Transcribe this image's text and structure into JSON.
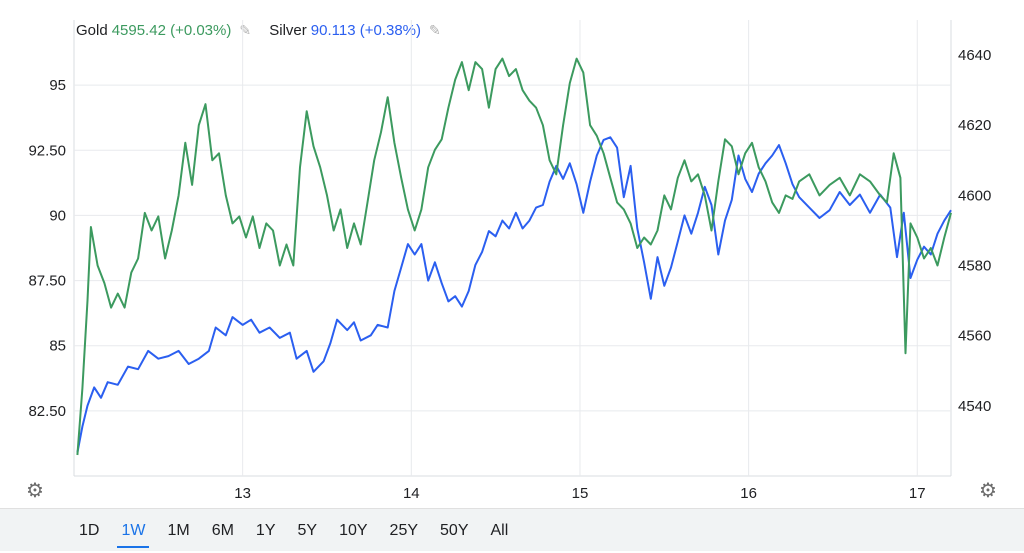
{
  "legend": {
    "gold": {
      "name": "Gold",
      "value": "4595.42 (+0.03%)",
      "color": "#3c9a5f",
      "icon": "pencil-icon"
    },
    "silver": {
      "name": "Silver",
      "value": "90.113 (+0.38%)",
      "color": "#2b5ff0",
      "icon": "pencil-icon"
    }
  },
  "icons": {
    "settings_left": "gear-icon",
    "settings_right": "gear-icon"
  },
  "range_tabs": [
    {
      "label": "1D",
      "active": false
    },
    {
      "label": "1W",
      "active": true
    },
    {
      "label": "1M",
      "active": false
    },
    {
      "label": "6M",
      "active": false
    },
    {
      "label": "1Y",
      "active": false
    },
    {
      "label": "5Y",
      "active": false
    },
    {
      "label": "10Y",
      "active": false
    },
    {
      "label": "25Y",
      "active": false
    },
    {
      "label": "50Y",
      "active": false
    },
    {
      "label": "All",
      "active": false
    }
  ],
  "chart_data": {
    "type": "line",
    "x_ticks": [
      "13",
      "14",
      "15",
      "16",
      "17"
    ],
    "x_tick_values": [
      13,
      14,
      15,
      16,
      17
    ],
    "xlim": [
      12.0,
      17.2
    ],
    "left_axis": {
      "ticks": [
        "95",
        "92.50",
        "90",
        "87.50",
        "85",
        "82.50"
      ],
      "tick_values": [
        95,
        92.5,
        90,
        87.5,
        85,
        82.5
      ],
      "ylim": [
        80,
        97.5
      ]
    },
    "right_axis": {
      "ticks": [
        "4640",
        "4620",
        "4600",
        "4580",
        "4560",
        "4540"
      ],
      "tick_values": [
        4640,
        4620,
        4600,
        4580,
        4560,
        4540
      ],
      "ylim": [
        4520,
        4650
      ]
    },
    "grid": true,
    "series": [
      {
        "name": "Silver",
        "axis": "left",
        "color": "#2b5ff0",
        "points": [
          [
            12.02,
            80.9
          ],
          [
            12.05,
            81.9
          ],
          [
            12.08,
            82.7
          ],
          [
            12.12,
            83.4
          ],
          [
            12.16,
            83.0
          ],
          [
            12.2,
            83.6
          ],
          [
            12.26,
            83.5
          ],
          [
            12.32,
            84.2
          ],
          [
            12.38,
            84.1
          ],
          [
            12.44,
            84.8
          ],
          [
            12.5,
            84.5
          ],
          [
            12.56,
            84.6
          ],
          [
            12.62,
            84.8
          ],
          [
            12.68,
            84.3
          ],
          [
            12.74,
            84.5
          ],
          [
            12.8,
            84.8
          ],
          [
            12.84,
            85.7
          ],
          [
            12.9,
            85.4
          ],
          [
            12.94,
            86.1
          ],
          [
            13.0,
            85.8
          ],
          [
            13.05,
            86.0
          ],
          [
            13.1,
            85.5
          ],
          [
            13.16,
            85.7
          ],
          [
            13.22,
            85.3
          ],
          [
            13.28,
            85.5
          ],
          [
            13.32,
            84.5
          ],
          [
            13.38,
            84.8
          ],
          [
            13.42,
            84.0
          ],
          [
            13.48,
            84.4
          ],
          [
            13.52,
            85.1
          ],
          [
            13.56,
            86.0
          ],
          [
            13.62,
            85.6
          ],
          [
            13.66,
            85.9
          ],
          [
            13.7,
            85.2
          ],
          [
            13.76,
            85.4
          ],
          [
            13.8,
            85.8
          ],
          [
            13.86,
            85.7
          ],
          [
            13.9,
            87.1
          ],
          [
            13.94,
            88.0
          ],
          [
            13.98,
            88.9
          ],
          [
            14.02,
            88.5
          ],
          [
            14.06,
            88.9
          ],
          [
            14.1,
            87.5
          ],
          [
            14.14,
            88.2
          ],
          [
            14.18,
            87.4
          ],
          [
            14.22,
            86.7
          ],
          [
            14.26,
            86.9
          ],
          [
            14.3,
            86.5
          ],
          [
            14.34,
            87.1
          ],
          [
            14.38,
            88.1
          ],
          [
            14.42,
            88.6
          ],
          [
            14.46,
            89.4
          ],
          [
            14.5,
            89.2
          ],
          [
            14.54,
            89.8
          ],
          [
            14.58,
            89.5
          ],
          [
            14.62,
            90.1
          ],
          [
            14.66,
            89.5
          ],
          [
            14.7,
            89.8
          ],
          [
            14.74,
            90.3
          ],
          [
            14.78,
            90.4
          ],
          [
            14.82,
            91.3
          ],
          [
            14.86,
            91.9
          ],
          [
            14.9,
            91.4
          ],
          [
            14.94,
            92.0
          ],
          [
            14.98,
            91.2
          ],
          [
            15.02,
            90.1
          ],
          [
            15.06,
            91.3
          ],
          [
            15.1,
            92.3
          ],
          [
            15.14,
            92.9
          ],
          [
            15.18,
            93.0
          ],
          [
            15.22,
            92.6
          ],
          [
            15.26,
            90.7
          ],
          [
            15.3,
            91.9
          ],
          [
            15.34,
            89.5
          ],
          [
            15.38,
            88.2
          ],
          [
            15.42,
            86.8
          ],
          [
            15.46,
            88.4
          ],
          [
            15.5,
            87.3
          ],
          [
            15.54,
            88.0
          ],
          [
            15.58,
            89.0
          ],
          [
            15.62,
            90.0
          ],
          [
            15.66,
            89.3
          ],
          [
            15.7,
            90.1
          ],
          [
            15.74,
            91.1
          ],
          [
            15.78,
            90.4
          ],
          [
            15.82,
            88.5
          ],
          [
            15.86,
            89.8
          ],
          [
            15.9,
            90.6
          ],
          [
            15.94,
            92.3
          ],
          [
            15.98,
            91.4
          ],
          [
            16.02,
            90.9
          ],
          [
            16.06,
            91.6
          ],
          [
            16.1,
            92.0
          ],
          [
            16.14,
            92.3
          ],
          [
            16.18,
            92.7
          ],
          [
            16.22,
            92.0
          ],
          [
            16.26,
            91.2
          ],
          [
            16.3,
            90.7
          ],
          [
            16.36,
            90.3
          ],
          [
            16.42,
            89.9
          ],
          [
            16.48,
            90.2
          ],
          [
            16.54,
            90.9
          ],
          [
            16.6,
            90.4
          ],
          [
            16.66,
            90.8
          ],
          [
            16.72,
            90.1
          ],
          [
            16.78,
            90.8
          ],
          [
            16.84,
            90.3
          ],
          [
            16.88,
            88.4
          ],
          [
            16.92,
            90.1
          ],
          [
            16.96,
            87.6
          ],
          [
            17.0,
            88.3
          ],
          [
            17.04,
            88.8
          ],
          [
            17.08,
            88.5
          ],
          [
            17.12,
            89.3
          ],
          [
            17.16,
            89.8
          ],
          [
            17.2,
            90.2
          ]
        ]
      },
      {
        "name": "Gold",
        "axis": "right",
        "color": "#3c9a5f",
        "points": [
          [
            12.02,
            4526
          ],
          [
            12.05,
            4545
          ],
          [
            12.08,
            4570
          ],
          [
            12.1,
            4591
          ],
          [
            12.14,
            4580
          ],
          [
            12.18,
            4575
          ],
          [
            12.22,
            4568
          ],
          [
            12.26,
            4572
          ],
          [
            12.3,
            4568
          ],
          [
            12.34,
            4578
          ],
          [
            12.38,
            4582
          ],
          [
            12.42,
            4595
          ],
          [
            12.46,
            4590
          ],
          [
            12.5,
            4594
          ],
          [
            12.54,
            4582
          ],
          [
            12.58,
            4590
          ],
          [
            12.62,
            4600
          ],
          [
            12.66,
            4615
          ],
          [
            12.7,
            4603
          ],
          [
            12.74,
            4620
          ],
          [
            12.78,
            4626
          ],
          [
            12.82,
            4610
          ],
          [
            12.86,
            4612
          ],
          [
            12.9,
            4600
          ],
          [
            12.94,
            4592
          ],
          [
            12.98,
            4594
          ],
          [
            13.02,
            4588
          ],
          [
            13.06,
            4594
          ],
          [
            13.1,
            4585
          ],
          [
            13.14,
            4592
          ],
          [
            13.18,
            4590
          ],
          [
            13.22,
            4580
          ],
          [
            13.26,
            4586
          ],
          [
            13.3,
            4580
          ],
          [
            13.34,
            4608
          ],
          [
            13.38,
            4624
          ],
          [
            13.42,
            4614
          ],
          [
            13.46,
            4608
          ],
          [
            13.5,
            4600
          ],
          [
            13.54,
            4590
          ],
          [
            13.58,
            4596
          ],
          [
            13.62,
            4585
          ],
          [
            13.66,
            4592
          ],
          [
            13.7,
            4586
          ],
          [
            13.74,
            4598
          ],
          [
            13.78,
            4610
          ],
          [
            13.82,
            4618
          ],
          [
            13.86,
            4628
          ],
          [
            13.9,
            4615
          ],
          [
            13.94,
            4605
          ],
          [
            13.98,
            4596
          ],
          [
            14.02,
            4590
          ],
          [
            14.06,
            4596
          ],
          [
            14.1,
            4608
          ],
          [
            14.14,
            4613
          ],
          [
            14.18,
            4616
          ],
          [
            14.22,
            4625
          ],
          [
            14.26,
            4633
          ],
          [
            14.3,
            4638
          ],
          [
            14.34,
            4630
          ],
          [
            14.38,
            4638
          ],
          [
            14.42,
            4636
          ],
          [
            14.46,
            4625
          ],
          [
            14.5,
            4636
          ],
          [
            14.54,
            4639
          ],
          [
            14.58,
            4634
          ],
          [
            14.62,
            4636
          ],
          [
            14.66,
            4630
          ],
          [
            14.7,
            4627
          ],
          [
            14.74,
            4625
          ],
          [
            14.78,
            4620
          ],
          [
            14.82,
            4610
          ],
          [
            14.86,
            4606
          ],
          [
            14.9,
            4620
          ],
          [
            14.94,
            4632
          ],
          [
            14.98,
            4639
          ],
          [
            15.02,
            4635
          ],
          [
            15.06,
            4620
          ],
          [
            15.1,
            4617
          ],
          [
            15.14,
            4612
          ],
          [
            15.18,
            4605
          ],
          [
            15.22,
            4598
          ],
          [
            15.26,
            4596
          ],
          [
            15.3,
            4592
          ],
          [
            15.34,
            4585
          ],
          [
            15.38,
            4588
          ],
          [
            15.42,
            4586
          ],
          [
            15.46,
            4590
          ],
          [
            15.5,
            4600
          ],
          [
            15.54,
            4596
          ],
          [
            15.58,
            4605
          ],
          [
            15.62,
            4610
          ],
          [
            15.66,
            4604
          ],
          [
            15.7,
            4606
          ],
          [
            15.74,
            4600
          ],
          [
            15.78,
            4590
          ],
          [
            15.82,
            4604
          ],
          [
            15.86,
            4616
          ],
          [
            15.9,
            4614
          ],
          [
            15.94,
            4606
          ],
          [
            15.98,
            4612
          ],
          [
            16.02,
            4615
          ],
          [
            16.06,
            4608
          ],
          [
            16.1,
            4604
          ],
          [
            16.14,
            4598
          ],
          [
            16.18,
            4595
          ],
          [
            16.22,
            4600
          ],
          [
            16.26,
            4599
          ],
          [
            16.3,
            4604
          ],
          [
            16.36,
            4606
          ],
          [
            16.42,
            4600
          ],
          [
            16.48,
            4603
          ],
          [
            16.54,
            4605
          ],
          [
            16.6,
            4600
          ],
          [
            16.66,
            4606
          ],
          [
            16.72,
            4604
          ],
          [
            16.78,
            4600
          ],
          [
            16.82,
            4598
          ],
          [
            16.86,
            4612
          ],
          [
            16.9,
            4605
          ],
          [
            16.93,
            4555
          ],
          [
            16.96,
            4592
          ],
          [
            17.0,
            4588
          ],
          [
            17.04,
            4582
          ],
          [
            17.08,
            4585
          ],
          [
            17.12,
            4580
          ],
          [
            17.16,
            4588
          ],
          [
            17.2,
            4595
          ]
        ]
      }
    ]
  }
}
